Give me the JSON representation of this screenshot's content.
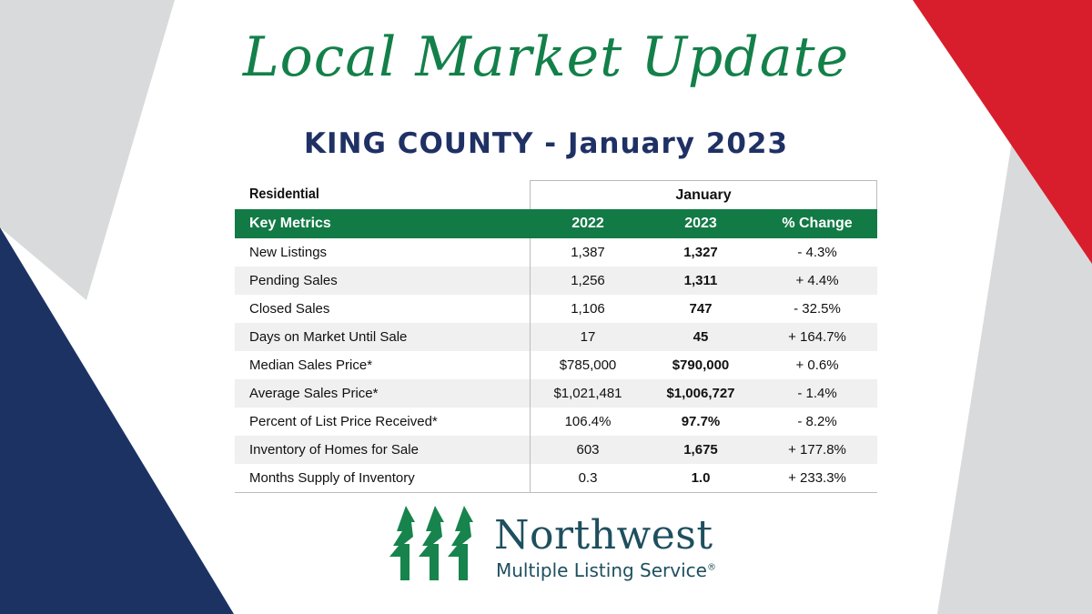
{
  "title": "Local Market Update",
  "subtitle": "KING COUNTY - January 2023",
  "colors": {
    "green": "#127a45",
    "navy": "#1f3164",
    "red": "#d81e2c",
    "gray": "#d9dadb"
  },
  "table": {
    "section": "Residential",
    "period": "January",
    "columns": [
      "Key Metrics",
      "2022",
      "2023",
      "% Change"
    ],
    "rows": [
      [
        "New Listings",
        "1,387",
        "1,327",
        "- 4.3%"
      ],
      [
        "Pending Sales",
        "1,256",
        "1,311",
        "+ 4.4%"
      ],
      [
        "Closed Sales",
        "1,106",
        "747",
        "- 32.5%"
      ],
      [
        "Days on Market Until Sale",
        "17",
        "45",
        "+ 164.7%"
      ],
      [
        "Median Sales Price*",
        "$785,000",
        "$790,000",
        "+ 0.6%"
      ],
      [
        "Average Sales Price*",
        "$1,021,481",
        "$1,006,727",
        "- 1.4%"
      ],
      [
        "Percent of List Price Received*",
        "106.4%",
        "97.7%",
        "- 8.2%"
      ],
      [
        "Inventory of Homes for Sale",
        "603",
        "1,675",
        "+ 177.8%"
      ],
      [
        "Months Supply of Inventory",
        "0.3",
        "1.0",
        "+ 233.3%"
      ]
    ]
  },
  "logo": {
    "name": "Northwest",
    "tagline": "Multiple Listing Service",
    "mark": "®"
  }
}
